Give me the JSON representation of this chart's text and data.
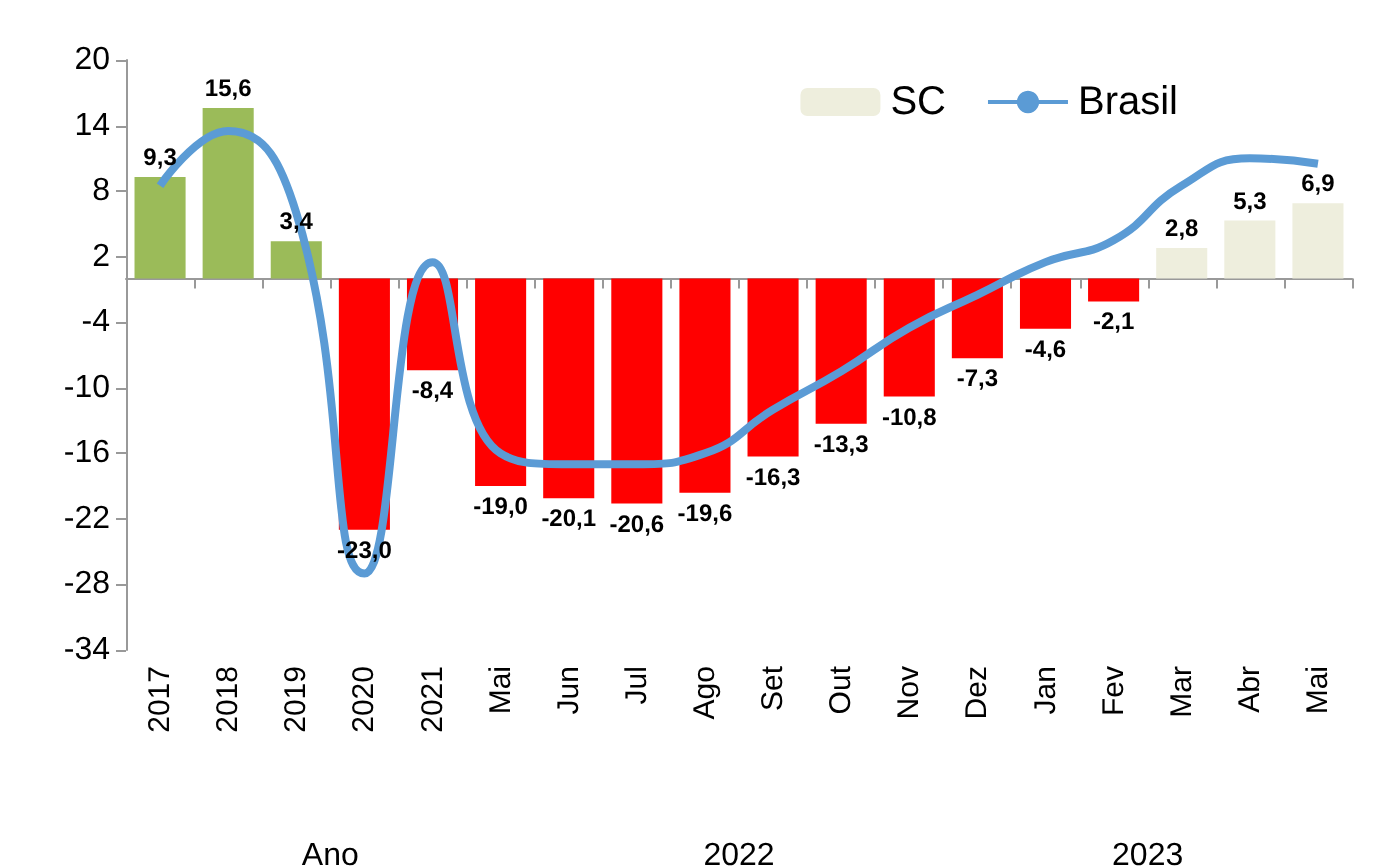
{
  "chart_data": {
    "type": "bar",
    "categories": [
      "2017",
      "2018",
      "2019",
      "2020",
      "2021",
      "Mai",
      "Jun",
      "Jul",
      "Ago",
      "Set",
      "Out",
      "Nov",
      "Dez",
      "Jan",
      "Fev",
      "Mar",
      "Abr",
      "Mai"
    ],
    "series": [
      {
        "name": "SC",
        "color": "#eeeedd",
        "colors": [
          "#9bbb59",
          "#9bbb59",
          "#9bbb59",
          "#ff0000",
          "#ff0000",
          "#ff0000",
          "#ff0000",
          "#ff0000",
          "#ff0000",
          "#ff0000",
          "#ff0000",
          "#ff0000",
          "#ff0000",
          "#ff0000",
          "#ff0000",
          "#eeeedd",
          "#eeeedd",
          "#eeeedd"
        ],
        "values": [
          9.3,
          15.6,
          3.4,
          -23.0,
          -8.4,
          -19.0,
          -20.1,
          -20.6,
          -19.6,
          -16.3,
          -13.3,
          -10.8,
          -7.3,
          -4.6,
          -2.1,
          2.8,
          5.3,
          6.9
        ],
        "value_labels": [
          "9,3",
          "15,6",
          "3,4",
          "-23,0",
          "-8,4",
          "-19,0",
          "-20,1",
          "-20,6",
          "-19,6",
          "-16,3",
          "-13,3",
          "-10,8",
          "-7,3",
          "-4,6",
          "-2,1",
          "2,8",
          "5,3",
          "6,9"
        ]
      },
      {
        "name": "Brasil",
        "type": "line",
        "color": "#5b9bd5",
        "values": [
          8.5,
          13.5,
          6,
          -27,
          1.5,
          -16,
          -17,
          -17,
          -16,
          -12,
          -8.5,
          -4.5,
          -1.5,
          1.5,
          3.5,
          8.5,
          11,
          10.5
        ]
      }
    ],
    "ylim": [
      -34,
      20
    ],
    "yticks": [
      20,
      14,
      8,
      2,
      -4,
      -10,
      -16,
      -22,
      -28,
      -34
    ],
    "grid": false,
    "legend": "top right",
    "marker": "none",
    "line_style": "solid",
    "annotations": [
      "Ano",
      "2022",
      "2023"
    ]
  }
}
